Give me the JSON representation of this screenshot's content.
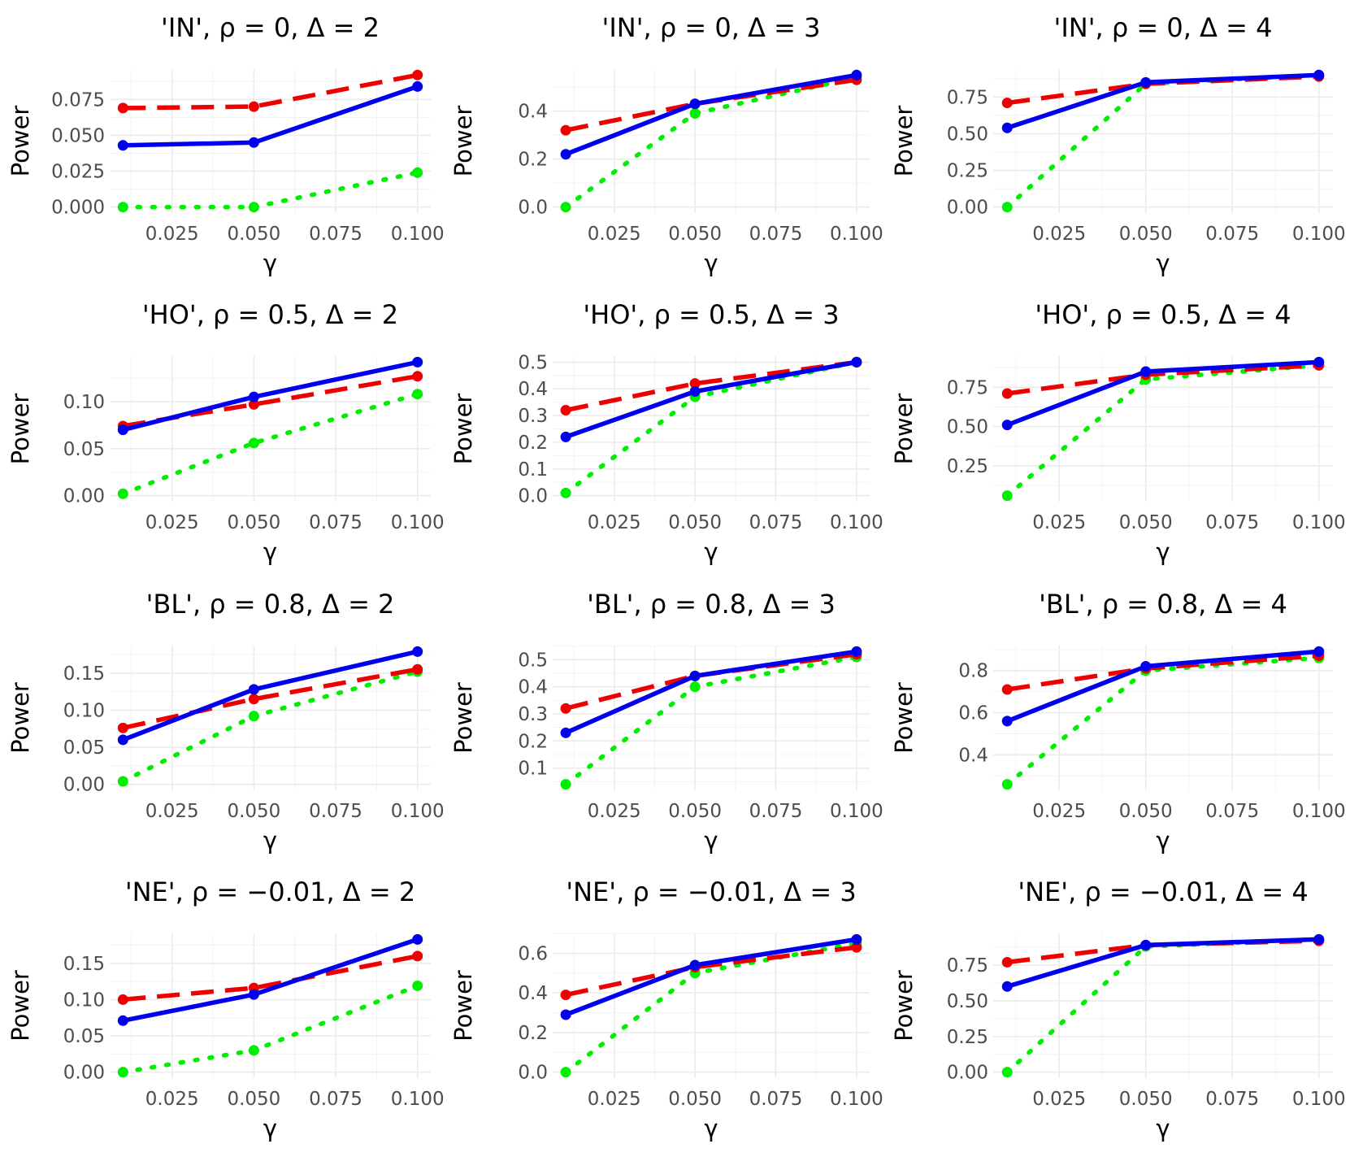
{
  "figure": {
    "xlabel": "γ",
    "ylabel": "Power",
    "series_styles": [
      {
        "color": "#0000ee",
        "dash": "solid"
      },
      {
        "color": "#ee0000",
        "dash": "dashed"
      },
      {
        "color": "#00ee00",
        "dash": "dotted"
      }
    ]
  },
  "chart_data": [
    {
      "type": "line",
      "title": "'IN', ρ = 0, Δ = 2",
      "xlabel": "γ",
      "ylabel": "Power",
      "x": [
        0.01,
        0.05,
        0.1
      ],
      "xlim": [
        0.01,
        0.1
      ],
      "ylim": [
        0,
        0.092
      ],
      "xticks": [
        "0.025",
        "0.050",
        "0.075",
        "0.100"
      ],
      "yticks": [
        "0.000",
        "0.025",
        "0.050",
        "0.075"
      ],
      "series": [
        {
          "values": [
            0.043,
            0.045,
            0.084
          ]
        },
        {
          "values": [
            0.069,
            0.07,
            0.092
          ]
        },
        {
          "values": [
            0.0,
            0.0,
            0.024
          ]
        }
      ]
    },
    {
      "type": "line",
      "title": "'IN', ρ = 0, Δ = 3",
      "xlabel": "γ",
      "ylabel": "Power",
      "x": [
        0.01,
        0.05,
        0.1
      ],
      "xlim": [
        0.01,
        0.1
      ],
      "ylim": [
        0,
        0.55
      ],
      "xticks": [
        "0.025",
        "0.050",
        "0.075",
        "0.100"
      ],
      "yticks": [
        "0.0",
        "0.2",
        "0.4"
      ],
      "series": [
        {
          "values": [
            0.22,
            0.43,
            0.55
          ]
        },
        {
          "values": [
            0.32,
            0.43,
            0.53
          ]
        },
        {
          "values": [
            0.0,
            0.39,
            0.54
          ]
        }
      ]
    },
    {
      "type": "line",
      "title": "'IN', ρ = 0, Δ = 4",
      "xlabel": "γ",
      "ylabel": "Power",
      "x": [
        0.01,
        0.05,
        0.1
      ],
      "xlim": [
        0.01,
        0.1
      ],
      "ylim": [
        0,
        0.9
      ],
      "xticks": [
        "0.025",
        "0.050",
        "0.075",
        "0.100"
      ],
      "yticks": [
        "0.00",
        "0.25",
        "0.50",
        "0.75"
      ],
      "series": [
        {
          "values": [
            0.54,
            0.85,
            0.9
          ]
        },
        {
          "values": [
            0.71,
            0.84,
            0.89
          ]
        },
        {
          "values": [
            0.0,
            0.84,
            0.9
          ]
        }
      ]
    },
    {
      "type": "line",
      "title": "'HO', ρ = 0.5, Δ = 2",
      "xlabel": "γ",
      "ylabel": "Power",
      "x": [
        0.01,
        0.05,
        0.1
      ],
      "xlim": [
        0.01,
        0.1
      ],
      "ylim": [
        0,
        0.142
      ],
      "xticks": [
        "0.025",
        "0.050",
        "0.075",
        "0.100"
      ],
      "yticks": [
        "0.00",
        "0.05",
        "0.10"
      ],
      "series": [
        {
          "values": [
            0.07,
            0.105,
            0.142
          ]
        },
        {
          "values": [
            0.074,
            0.097,
            0.127
          ]
        },
        {
          "values": [
            0.002,
            0.056,
            0.108
          ]
        }
      ]
    },
    {
      "type": "line",
      "title": "'HO', ρ = 0.5, Δ = 3",
      "xlabel": "γ",
      "ylabel": "Power",
      "x": [
        0.01,
        0.05,
        0.1
      ],
      "xlim": [
        0.01,
        0.1
      ],
      "ylim": [
        0,
        0.5
      ],
      "xticks": [
        "0.025",
        "0.050",
        "0.075",
        "0.100"
      ],
      "yticks": [
        "0.0",
        "0.1",
        "0.2",
        "0.3",
        "0.4",
        "0.5"
      ],
      "series": [
        {
          "values": [
            0.22,
            0.39,
            0.5
          ]
        },
        {
          "values": [
            0.32,
            0.42,
            0.5
          ]
        },
        {
          "values": [
            0.01,
            0.37,
            0.5
          ]
        }
      ]
    },
    {
      "type": "line",
      "title": "'HO', ρ = 0.5, Δ = 4",
      "xlabel": "γ",
      "ylabel": "Power",
      "x": [
        0.01,
        0.05,
        0.1
      ],
      "xlim": [
        0.01,
        0.1
      ],
      "ylim": [
        0.06,
        0.91
      ],
      "xticks": [
        "0.025",
        "0.050",
        "0.075",
        "0.100"
      ],
      "yticks": [
        "0.25",
        "0.50",
        "0.75"
      ],
      "series": [
        {
          "values": [
            0.51,
            0.85,
            0.91
          ]
        },
        {
          "values": [
            0.71,
            0.83,
            0.89
          ]
        },
        {
          "values": [
            0.06,
            0.8,
            0.89
          ]
        }
      ]
    },
    {
      "type": "line",
      "title": "'BL', ρ = 0.8, Δ = 2",
      "xlabel": "γ",
      "ylabel": "Power",
      "x": [
        0.01,
        0.05,
        0.1
      ],
      "xlim": [
        0.01,
        0.1
      ],
      "ylim": [
        0,
        0.179
      ],
      "xticks": [
        "0.025",
        "0.050",
        "0.075",
        "0.100"
      ],
      "yticks": [
        "0.00",
        "0.05",
        "0.10",
        "0.15"
      ],
      "series": [
        {
          "values": [
            0.06,
            0.128,
            0.179
          ]
        },
        {
          "values": [
            0.076,
            0.115,
            0.155
          ]
        },
        {
          "values": [
            0.004,
            0.092,
            0.152
          ]
        }
      ]
    },
    {
      "type": "line",
      "title": "'BL', ρ = 0.8, Δ = 3",
      "xlabel": "γ",
      "ylabel": "Power",
      "x": [
        0.01,
        0.05,
        0.1
      ],
      "xlim": [
        0.01,
        0.1
      ],
      "ylim": [
        0.04,
        0.53
      ],
      "xticks": [
        "0.025",
        "0.050",
        "0.075",
        "0.100"
      ],
      "yticks": [
        "0.1",
        "0.2",
        "0.3",
        "0.4",
        "0.5"
      ],
      "series": [
        {
          "values": [
            0.23,
            0.44,
            0.53
          ]
        },
        {
          "values": [
            0.32,
            0.44,
            0.52
          ]
        },
        {
          "values": [
            0.04,
            0.4,
            0.51
          ]
        }
      ]
    },
    {
      "type": "line",
      "title": "'BL', ρ = 0.8, Δ = 4",
      "xlabel": "γ",
      "ylabel": "Power",
      "x": [
        0.01,
        0.05,
        0.1
      ],
      "xlim": [
        0.01,
        0.1
      ],
      "ylim": [
        0.26,
        0.89
      ],
      "xticks": [
        "0.025",
        "0.050",
        "0.075",
        "0.100"
      ],
      "yticks": [
        "0.4",
        "0.6",
        "0.8"
      ],
      "series": [
        {
          "values": [
            0.56,
            0.82,
            0.89
          ]
        },
        {
          "values": [
            0.71,
            0.81,
            0.87
          ]
        },
        {
          "values": [
            0.26,
            0.8,
            0.86
          ]
        }
      ]
    },
    {
      "type": "line",
      "title": "'NE', ρ = −0.01, Δ = 2",
      "xlabel": "γ",
      "ylabel": "Power",
      "x": [
        0.01,
        0.05,
        0.1
      ],
      "xlim": [
        0.01,
        0.1
      ],
      "ylim": [
        0,
        0.183
      ],
      "xticks": [
        "0.025",
        "0.050",
        "0.075",
        "0.100"
      ],
      "yticks": [
        "0.00",
        "0.05",
        "0.10",
        "0.15"
      ],
      "series": [
        {
          "values": [
            0.071,
            0.107,
            0.183
          ]
        },
        {
          "values": [
            0.1,
            0.116,
            0.16
          ]
        },
        {
          "values": [
            0.0,
            0.03,
            0.119
          ]
        }
      ]
    },
    {
      "type": "line",
      "title": "'NE', ρ = −0.01, Δ = 3",
      "xlabel": "γ",
      "ylabel": "Power",
      "x": [
        0.01,
        0.05,
        0.1
      ],
      "xlim": [
        0.01,
        0.1
      ],
      "ylim": [
        0,
        0.67
      ],
      "xticks": [
        "0.025",
        "0.050",
        "0.075",
        "0.100"
      ],
      "yticks": [
        "0.0",
        "0.2",
        "0.4",
        "0.6"
      ],
      "series": [
        {
          "values": [
            0.29,
            0.54,
            0.67
          ]
        },
        {
          "values": [
            0.39,
            0.53,
            0.63
          ]
        },
        {
          "values": [
            0.0,
            0.5,
            0.65
          ]
        }
      ]
    },
    {
      "type": "line",
      "title": "'NE', ρ = −0.01, Δ = 4",
      "xlabel": "γ",
      "ylabel": "Power",
      "x": [
        0.01,
        0.05,
        0.1
      ],
      "xlim": [
        0.01,
        0.1
      ],
      "ylim": [
        0,
        0.93
      ],
      "xticks": [
        "0.025",
        "0.050",
        "0.075",
        "0.100"
      ],
      "yticks": [
        "0.00",
        "0.25",
        "0.50",
        "0.75"
      ],
      "series": [
        {
          "values": [
            0.6,
            0.89,
            0.93
          ]
        },
        {
          "values": [
            0.77,
            0.89,
            0.92
          ]
        },
        {
          "values": [
            0.0,
            0.88,
            0.93
          ]
        }
      ]
    }
  ]
}
